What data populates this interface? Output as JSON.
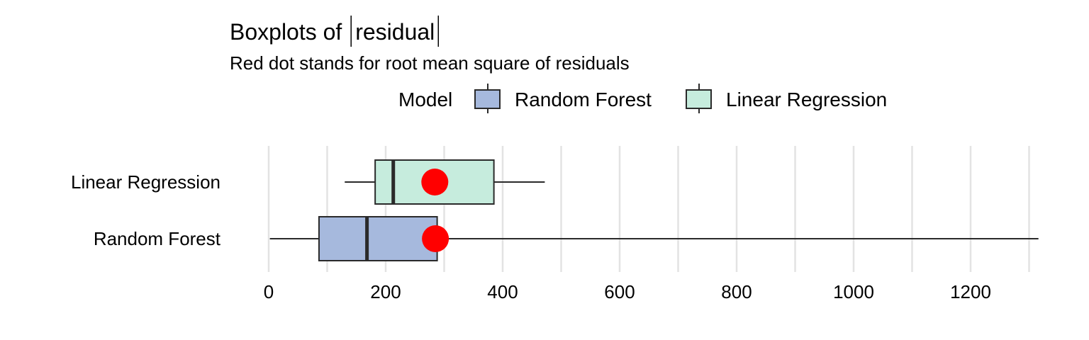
{
  "chart_data": {
    "type": "boxplot",
    "orientation": "horizontal",
    "title": "Boxplots of |residual|",
    "title_parts": {
      "prefix": "Boxplots of ",
      "inner": "residual"
    },
    "subtitle": "Red dot stands for root mean square of residuals",
    "legend": {
      "title": "Model",
      "position": "top",
      "entries": [
        "Random Forest",
        "Linear Regression"
      ]
    },
    "grid": true,
    "xlim": [
      0,
      1320
    ],
    "x_ticks": [
      0,
      200,
      400,
      600,
      800,
      1000,
      1200
    ],
    "x_tick_labels": [
      "0",
      "200",
      "400",
      "600",
      "800",
      "1000",
      "1200"
    ],
    "categories": [
      "Linear Regression",
      "Random Forest"
    ],
    "series": [
      {
        "name": "Linear Regression",
        "color": "#c6ecdd",
        "whisker_low": 130,
        "q1": 182,
        "median": 213,
        "q3": 385,
        "whisker_high": 472,
        "rmse": 284
      },
      {
        "name": "Random Forest",
        "color": "#a6b9dd",
        "whisker_low": 2,
        "q1": 86,
        "median": 168,
        "q3": 288,
        "whisker_high": 1316,
        "rmse": 285
      }
    ],
    "rmse_color": "#ff0000",
    "box_stroke": "#2a2a2a",
    "grid_color": "#e3e3e3"
  }
}
